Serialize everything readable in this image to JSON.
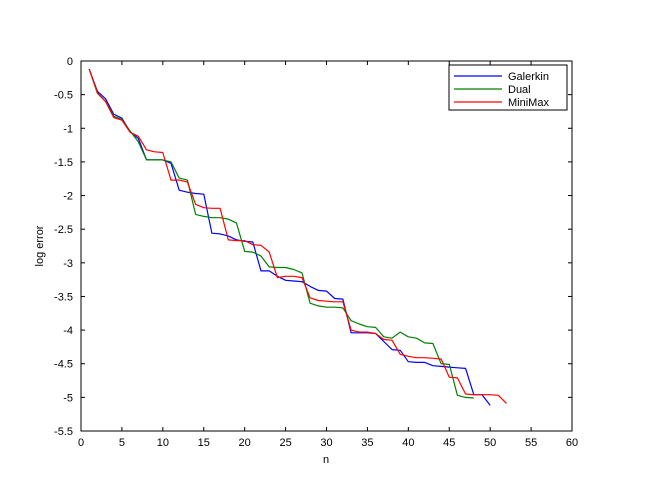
{
  "chart_data": {
    "type": "line",
    "xlabel": "n",
    "ylabel": "log error",
    "xlim": [
      0,
      60
    ],
    "ylim": [
      -5.5,
      0
    ],
    "xticks": [
      0,
      5,
      10,
      15,
      20,
      25,
      30,
      35,
      40,
      45,
      50,
      55,
      60
    ],
    "yticks": [
      0,
      -0.5,
      -1,
      -1.5,
      -2,
      -2.5,
      -3,
      -3.5,
      -4,
      -4.5,
      -5,
      -5.5
    ],
    "xtick_labels": [
      "0",
      "5",
      "10",
      "15",
      "20",
      "25",
      "30",
      "35",
      "40",
      "45",
      "50",
      "55",
      "60"
    ],
    "ytick_labels": [
      "0",
      "-0.5",
      "-1",
      "-1.5",
      "-2",
      "-2.5",
      "-3",
      "-3.5",
      "-4",
      "-4.5",
      "-5",
      "-5.5"
    ],
    "grid": false,
    "legend_position": "top-right",
    "series": [
      {
        "name": "Galerkin",
        "color": "#0000ff",
        "x": [
          1,
          2,
          3,
          4,
          5,
          6,
          7,
          8,
          9,
          10,
          11,
          12,
          13,
          14,
          15,
          16,
          17,
          18,
          19,
          20,
          21,
          22,
          23,
          24,
          25,
          26,
          27,
          28,
          29,
          30,
          31,
          32,
          33,
          34,
          35,
          36,
          37,
          38,
          39,
          40,
          41,
          42,
          43,
          44,
          45,
          46,
          47,
          48,
          49,
          50
        ],
        "y": [
          -0.12,
          -0.45,
          -0.56,
          -0.79,
          -0.85,
          -1.05,
          -1.15,
          -1.47,
          -1.47,
          -1.47,
          -1.52,
          -1.92,
          -1.95,
          -1.97,
          -1.98,
          -2.56,
          -2.57,
          -2.6,
          -2.66,
          -2.68,
          -2.69,
          -3.12,
          -3.12,
          -3.2,
          -3.26,
          -3.27,
          -3.28,
          -3.35,
          -3.41,
          -3.42,
          -3.53,
          -3.54,
          -4.04,
          -4.04,
          -4.04,
          -4.05,
          -4.17,
          -4.29,
          -4.3,
          -4.47,
          -4.48,
          -4.48,
          -4.53,
          -4.54,
          -4.55,
          -4.56,
          -4.57,
          -4.96,
          -4.96,
          -5.12
        ]
      },
      {
        "name": "Dual",
        "color": "#008000",
        "x": [
          1,
          2,
          3,
          4,
          5,
          6,
          7,
          8,
          9,
          10,
          11,
          12,
          13,
          14,
          15,
          16,
          17,
          18,
          19,
          20,
          21,
          22,
          23,
          24,
          25,
          26,
          27,
          28,
          29,
          30,
          31,
          32,
          33,
          34,
          35,
          36,
          37,
          38,
          39,
          40,
          41,
          42,
          43,
          44,
          45,
          46,
          47,
          48
        ],
        "y": [
          -0.12,
          -0.48,
          -0.6,
          -0.82,
          -0.87,
          -1.04,
          -1.2,
          -1.47,
          -1.47,
          -1.47,
          -1.5,
          -1.74,
          -1.77,
          -2.28,
          -2.31,
          -2.33,
          -2.33,
          -2.35,
          -2.41,
          -2.83,
          -2.84,
          -2.9,
          -3.06,
          -3.07,
          -3.07,
          -3.1,
          -3.15,
          -3.6,
          -3.64,
          -3.66,
          -3.66,
          -3.67,
          -3.86,
          -3.91,
          -3.95,
          -3.96,
          -4.1,
          -4.12,
          -4.03,
          -4.1,
          -4.12,
          -4.19,
          -4.2,
          -4.5,
          -4.51,
          -4.97,
          -5.0,
          -5.01
        ]
      },
      {
        "name": "MiniMax",
        "color": "#ff0000",
        "x": [
          1,
          2,
          3,
          4,
          5,
          6,
          7,
          8,
          9,
          10,
          11,
          12,
          13,
          14,
          15,
          16,
          17,
          18,
          19,
          20,
          21,
          22,
          23,
          24,
          25,
          26,
          27,
          28,
          29,
          30,
          31,
          32,
          33,
          34,
          35,
          36,
          37,
          38,
          39,
          40,
          41,
          42,
          43,
          44,
          45,
          46,
          47,
          48,
          49,
          50,
          51,
          52
        ],
        "y": [
          -0.12,
          -0.47,
          -0.6,
          -0.84,
          -0.88,
          -1.06,
          -1.12,
          -1.32,
          -1.35,
          -1.36,
          -1.77,
          -1.77,
          -1.8,
          -2.13,
          -2.18,
          -2.19,
          -2.19,
          -2.66,
          -2.67,
          -2.67,
          -2.73,
          -2.74,
          -2.84,
          -3.22,
          -3.2,
          -3.2,
          -3.22,
          -3.52,
          -3.56,
          -3.57,
          -3.58,
          -3.58,
          -4.0,
          -4.03,
          -4.03,
          -4.05,
          -4.14,
          -4.15,
          -4.36,
          -4.39,
          -4.41,
          -4.41,
          -4.42,
          -4.43,
          -4.7,
          -4.71,
          -4.95,
          -4.96,
          -4.96,
          -4.96,
          -4.97,
          -5.09
        ]
      }
    ]
  }
}
